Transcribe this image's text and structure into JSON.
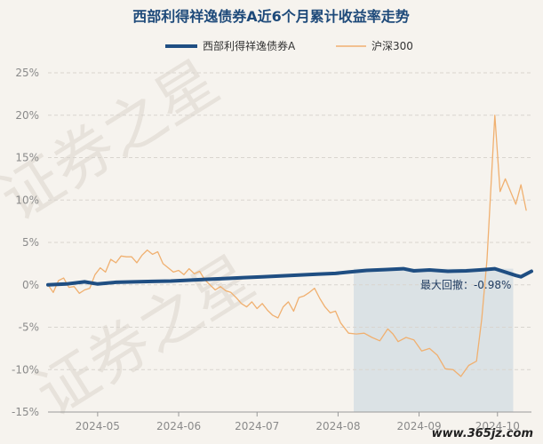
{
  "chart_data": {
    "type": "line",
    "title": "西部利得祥逸债券A近6个月累计收益率走势",
    "xlabel": "",
    "ylabel": "",
    "x_range": [
      "2024-04-12",
      "2024-10-14"
    ],
    "ylim": [
      -15,
      25
    ],
    "y_ticks": [
      "25%",
      "20%",
      "15%",
      "10%",
      "5%",
      "0%",
      "-5%",
      "-10%",
      "-15%"
    ],
    "x_ticks": [
      {
        "date": "2024-05-01",
        "label": "2024-05"
      },
      {
        "date": "2024-06-01",
        "label": "2024-06"
      },
      {
        "date": "2024-07-01",
        "label": "2024-07"
      },
      {
        "date": "2024-08-01",
        "label": "2024-08"
      },
      {
        "date": "2024-09-01",
        "label": "2024-09"
      },
      {
        "date": "2024-10-01",
        "label": "2024-10"
      }
    ],
    "legend_position": "top-center",
    "grid": true,
    "series": [
      {
        "name": "西部利得祥逸债券A",
        "color": "#1f4e82",
        "points": [
          [
            "2024-04-12",
            0.0
          ],
          [
            "2024-04-19",
            0.1
          ],
          [
            "2024-04-26",
            0.35
          ],
          [
            "2024-05-01",
            0.1
          ],
          [
            "2024-05-08",
            0.3
          ],
          [
            "2024-05-15",
            0.35
          ],
          [
            "2024-05-22",
            0.4
          ],
          [
            "2024-05-29",
            0.45
          ],
          [
            "2024-06-05",
            0.55
          ],
          [
            "2024-06-12",
            0.65
          ],
          [
            "2024-06-19",
            0.75
          ],
          [
            "2024-06-26",
            0.85
          ],
          [
            "2024-07-03",
            0.95
          ],
          [
            "2024-07-10",
            1.05
          ],
          [
            "2024-07-17",
            1.15
          ],
          [
            "2024-07-24",
            1.25
          ],
          [
            "2024-07-31",
            1.35
          ],
          [
            "2024-08-05",
            1.5
          ],
          [
            "2024-08-12",
            1.7
          ],
          [
            "2024-08-19",
            1.8
          ],
          [
            "2024-08-26",
            1.9
          ],
          [
            "2024-08-30",
            1.65
          ],
          [
            "2024-09-05",
            1.75
          ],
          [
            "2024-09-12",
            1.6
          ],
          [
            "2024-09-19",
            1.65
          ],
          [
            "2024-09-26",
            1.8
          ],
          [
            "2024-09-30",
            1.9
          ],
          [
            "2024-10-08",
            1.1
          ],
          [
            "2024-10-10",
            0.95
          ],
          [
            "2024-10-14",
            1.6
          ]
        ]
      },
      {
        "name": "沪深300",
        "color": "#f0b070",
        "points": [
          [
            "2024-04-12",
            0.0
          ],
          [
            "2024-04-14",
            -0.9
          ],
          [
            "2024-04-16",
            0.5
          ],
          [
            "2024-04-18",
            0.8
          ],
          [
            "2024-04-20",
            -0.3
          ],
          [
            "2024-04-22",
            -0.2
          ],
          [
            "2024-04-24",
            -1.0
          ],
          [
            "2024-04-26",
            -0.6
          ],
          [
            "2024-04-28",
            -0.4
          ],
          [
            "2024-04-30",
            1.2
          ],
          [
            "2024-05-02",
            2.0
          ],
          [
            "2024-05-04",
            1.5
          ],
          [
            "2024-05-06",
            3.0
          ],
          [
            "2024-05-08",
            2.6
          ],
          [
            "2024-05-10",
            3.4
          ],
          [
            "2024-05-12",
            3.3
          ],
          [
            "2024-05-14",
            3.3
          ],
          [
            "2024-05-16",
            2.6
          ],
          [
            "2024-05-18",
            3.5
          ],
          [
            "2024-05-20",
            4.1
          ],
          [
            "2024-05-22",
            3.6
          ],
          [
            "2024-05-24",
            3.9
          ],
          [
            "2024-05-26",
            2.5
          ],
          [
            "2024-05-28",
            2.0
          ],
          [
            "2024-05-30",
            1.5
          ],
          [
            "2024-06-01",
            1.7
          ],
          [
            "2024-06-03",
            1.2
          ],
          [
            "2024-06-05",
            1.9
          ],
          [
            "2024-06-07",
            1.3
          ],
          [
            "2024-06-09",
            1.6
          ],
          [
            "2024-06-11",
            0.6
          ],
          [
            "2024-06-13",
            0.0
          ],
          [
            "2024-06-15",
            -0.6
          ],
          [
            "2024-06-17",
            -0.2
          ],
          [
            "2024-06-19",
            -0.7
          ],
          [
            "2024-06-21",
            -0.9
          ],
          [
            "2024-06-23",
            -1.5
          ],
          [
            "2024-06-25",
            -2.2
          ],
          [
            "2024-06-27",
            -2.6
          ],
          [
            "2024-06-29",
            -2.0
          ],
          [
            "2024-07-01",
            -2.8
          ],
          [
            "2024-07-03",
            -2.2
          ],
          [
            "2024-07-05",
            -3.0
          ],
          [
            "2024-07-07",
            -3.6
          ],
          [
            "2024-07-09",
            -3.9
          ],
          [
            "2024-07-11",
            -2.6
          ],
          [
            "2024-07-13",
            -2.0
          ],
          [
            "2024-07-15",
            -3.1
          ],
          [
            "2024-07-17",
            -1.5
          ],
          [
            "2024-07-19",
            -1.3
          ],
          [
            "2024-07-21",
            -0.9
          ],
          [
            "2024-07-23",
            -0.4
          ],
          [
            "2024-07-25",
            -1.6
          ],
          [
            "2024-07-27",
            -2.6
          ],
          [
            "2024-07-29",
            -3.3
          ],
          [
            "2024-07-31",
            -3.1
          ],
          [
            "2024-08-02",
            -4.5
          ],
          [
            "2024-08-05",
            -5.7
          ],
          [
            "2024-08-08",
            -5.8
          ],
          [
            "2024-08-11",
            -5.7
          ],
          [
            "2024-08-14",
            -6.2
          ],
          [
            "2024-08-17",
            -6.6
          ],
          [
            "2024-08-20",
            -5.2
          ],
          [
            "2024-08-22",
            -5.8
          ],
          [
            "2024-08-24",
            -6.7
          ],
          [
            "2024-08-27",
            -6.2
          ],
          [
            "2024-08-30",
            -6.5
          ],
          [
            "2024-09-02",
            -7.8
          ],
          [
            "2024-09-05",
            -7.5
          ],
          [
            "2024-09-08",
            -8.3
          ],
          [
            "2024-09-11",
            -9.9
          ],
          [
            "2024-09-14",
            -10.0
          ],
          [
            "2024-09-17",
            -10.8
          ],
          [
            "2024-09-20",
            -9.5
          ],
          [
            "2024-09-23",
            -9.0
          ],
          [
            "2024-09-25",
            -4.0
          ],
          [
            "2024-09-27",
            3.0
          ],
          [
            "2024-09-30",
            20.0
          ],
          [
            "2024-10-02",
            11.0
          ],
          [
            "2024-10-04",
            12.5
          ],
          [
            "2024-10-08",
            9.5
          ],
          [
            "2024-10-10",
            11.8
          ],
          [
            "2024-10-12",
            8.8
          ]
        ]
      }
    ],
    "annotations": [
      {
        "type": "shaded-region",
        "x_start": "2024-08-07",
        "x_end": "2024-10-07",
        "label": "最大回撤：-0.98%"
      }
    ]
  },
  "watermark": "证券之星",
  "site_mark": "www.365jz.com"
}
